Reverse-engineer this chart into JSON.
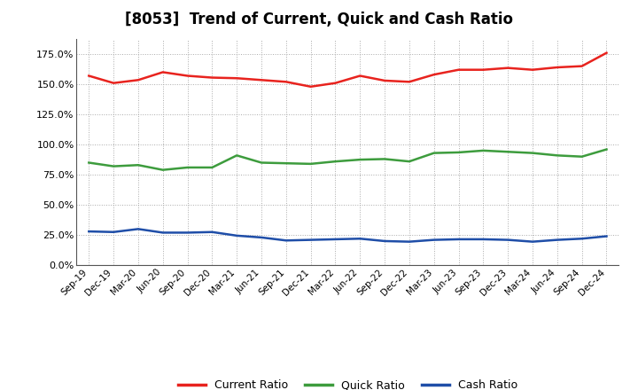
{
  "title": "[8053]  Trend of Current, Quick and Cash Ratio",
  "x_labels": [
    "Sep-19",
    "Dec-19",
    "Mar-20",
    "Jun-20",
    "Sep-20",
    "Dec-20",
    "Mar-21",
    "Jun-21",
    "Sep-21",
    "Dec-21",
    "Mar-22",
    "Jun-22",
    "Sep-22",
    "Dec-22",
    "Mar-23",
    "Jun-23",
    "Sep-23",
    "Dec-23",
    "Mar-24",
    "Jun-24",
    "Sep-24",
    "Dec-24"
  ],
  "current_ratio": [
    157.0,
    151.0,
    153.5,
    160.0,
    157.0,
    155.5,
    155.0,
    153.5,
    152.0,
    148.0,
    151.0,
    157.0,
    153.0,
    152.0,
    158.0,
    162.0,
    162.0,
    163.5,
    162.0,
    164.0,
    165.0,
    176.0
  ],
  "quick_ratio": [
    85.0,
    82.0,
    83.0,
    79.0,
    81.0,
    81.0,
    91.0,
    85.0,
    84.5,
    84.0,
    86.0,
    87.5,
    88.0,
    86.0,
    93.0,
    93.5,
    95.0,
    94.0,
    93.0,
    91.0,
    90.0,
    96.0
  ],
  "cash_ratio": [
    28.0,
    27.5,
    30.0,
    27.0,
    27.0,
    27.5,
    24.5,
    23.0,
    20.5,
    21.0,
    21.5,
    22.0,
    20.0,
    19.5,
    21.0,
    21.5,
    21.5,
    21.0,
    19.5,
    21.0,
    22.0,
    24.0
  ],
  "current_color": "#e8231e",
  "quick_color": "#3d9c3d",
  "cash_color": "#1f4ea8",
  "ylim": [
    0,
    187.5
  ],
  "yticks": [
    0,
    25,
    50,
    75,
    100,
    125,
    150,
    175
  ],
  "ytick_labels": [
    "0.0%",
    "25.0%",
    "50.0%",
    "75.0%",
    "100.0%",
    "125.0%",
    "150.0%",
    "175.0%"
  ],
  "bg_color": "#ffffff",
  "plot_bg_color": "#ffffff",
  "grid_color": "#aaaaaa",
  "legend_labels": [
    "Current Ratio",
    "Quick Ratio",
    "Cash Ratio"
  ]
}
